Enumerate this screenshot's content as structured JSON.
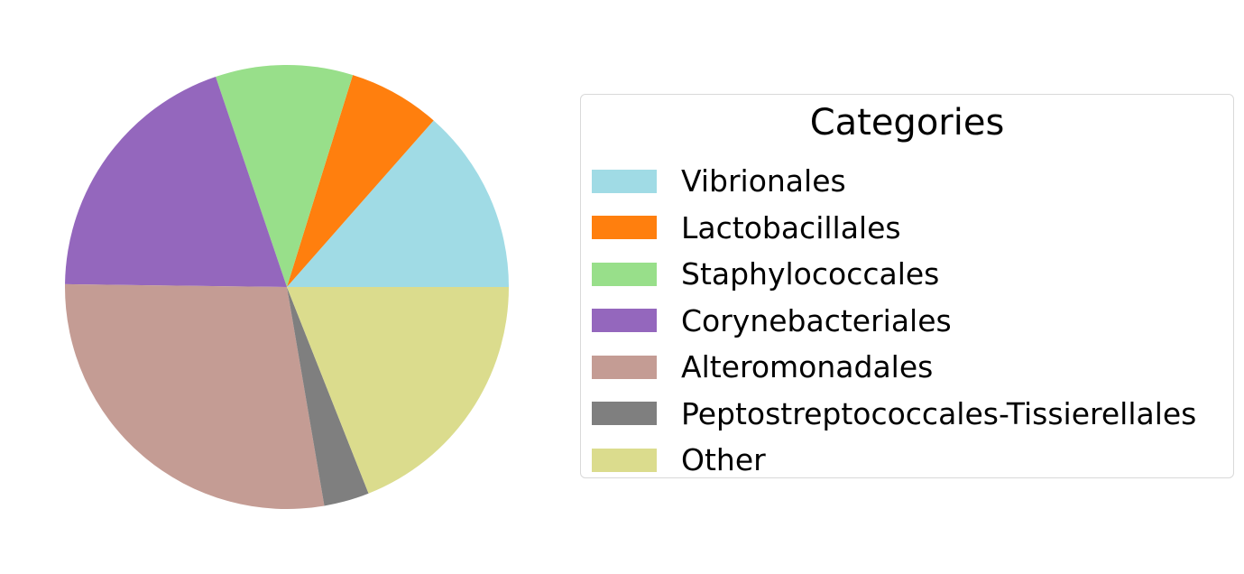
{
  "chart_data": {
    "type": "pie",
    "title": "",
    "legend": {
      "title": "Categories",
      "position": "right"
    },
    "start_angle_deg": 0,
    "direction": "counterclockwise",
    "slices": [
      {
        "label": "Vibrionales",
        "value": 13.5,
        "color": "#a0dbe5"
      },
      {
        "label": "Lactobacillales",
        "value": 6.7,
        "color": "#ff7f0e"
      },
      {
        "label": "Staphylococcales",
        "value": 10.0,
        "color": "#98df8a"
      },
      {
        "label": "Corynebacteriales",
        "value": 19.6,
        "color": "#9467bd"
      },
      {
        "label": "Alteromonadales",
        "value": 27.9,
        "color": "#c49c94"
      },
      {
        "label": "Peptostreptococcales-Tissierellales",
        "value": 3.3,
        "color": "#7f7f7f"
      },
      {
        "label": "Other",
        "value": 19.0,
        "color": "#dbdc8d"
      }
    ]
  }
}
